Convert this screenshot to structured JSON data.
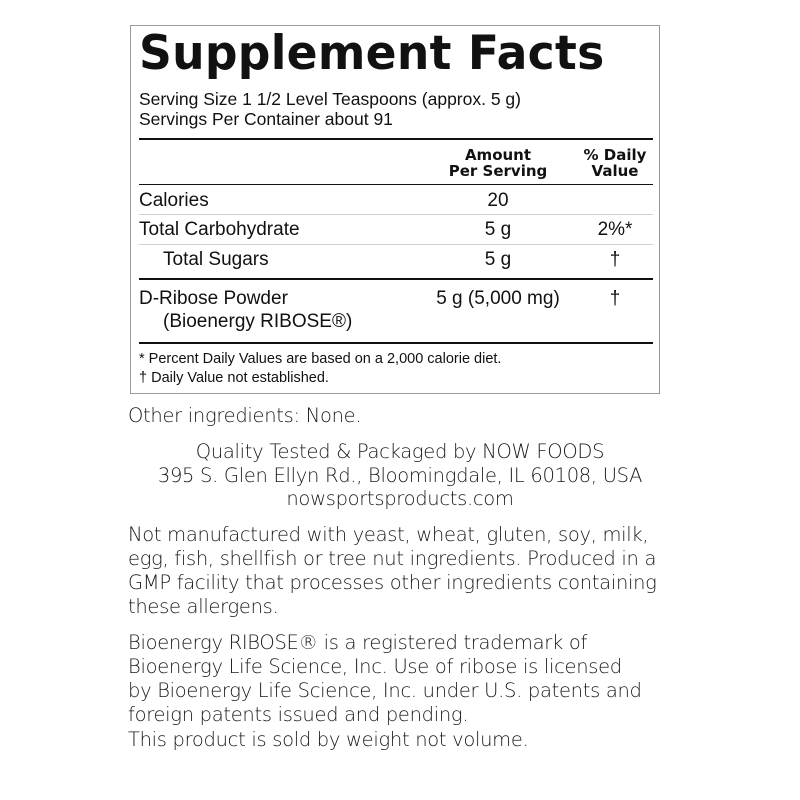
{
  "panel": {
    "title": "Supplement Facts",
    "serving_size": "Serving Size 1 1/2 Level Teaspoons (approx. 5 g)",
    "servings_per_container": "Servings Per Container about 91",
    "headers": {
      "amount_line1": "Amount",
      "amount_line2": "Per Serving",
      "dv_line1": "% Daily",
      "dv_line2": "Value"
    },
    "rows": [
      {
        "name": "Calories",
        "amount": "20",
        "dv": ""
      },
      {
        "name": "Total Carbohydrate",
        "amount": "5 g",
        "dv": "2%*"
      },
      {
        "name": "Total Sugars",
        "amount": "5 g",
        "dv": "†"
      },
      {
        "name": "D-Ribose Powder",
        "subname": "(Bioenergy RIBOSE®)",
        "amount": "5 g (5,000 mg)",
        "dv": "†"
      }
    ],
    "footnotes": [
      "* Percent Daily Values are based on a 2,000 calorie diet.",
      "† Daily Value not established."
    ]
  },
  "other_ingredients": "Other ingredients: None.",
  "manufacturer": {
    "line1": "Quality Tested & Packaged by NOW FOODS",
    "line2": "395 S. Glen Ellyn Rd., Bloomingdale, IL 60108, USA",
    "website": "nowsportsproducts.com"
  },
  "allergen_statement": "Not manufactured with yeast, wheat, gluten, soy, milk, egg, fish, shellfish or tree nut ingredients. Produced in a GMP facility that processes other ingredients containing these allergens.",
  "trademark_statement": "Bioenergy RIBOSE® is a registered trademark of Bioenergy Life Science, Inc. Use of ribose is licensed by Bioenergy Life Science, Inc. under U.S. patents and foreign patents issued and pending.",
  "weight_statement": "This product is sold by weight not volume."
}
